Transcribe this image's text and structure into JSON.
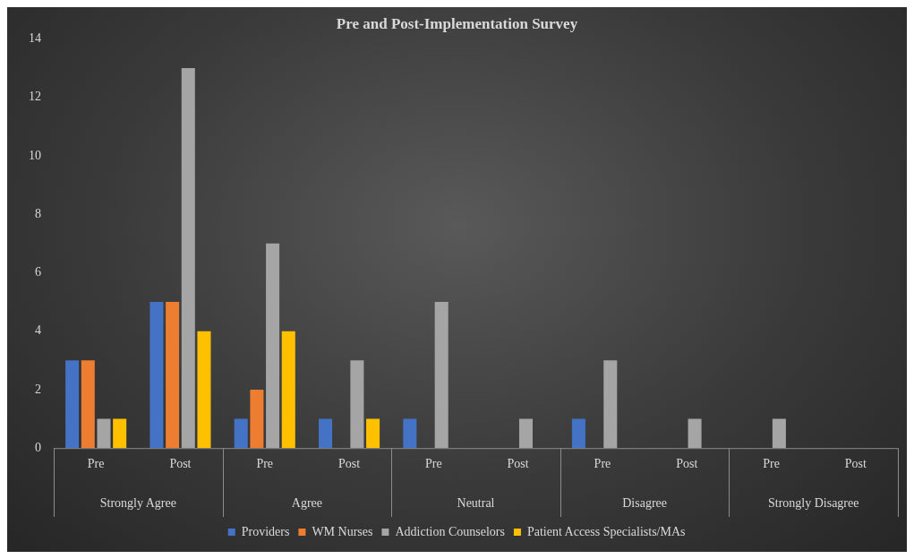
{
  "chart_data": {
    "type": "bar",
    "title": "Pre and Post-Implementation Survey",
    "categories": [
      "Pre",
      "Post",
      "Pre",
      "Post",
      "Pre",
      "Post",
      "Pre",
      "Post",
      "Pre",
      "Post"
    ],
    "annotations": [
      "Strongly Agree",
      "Agree",
      "Neutral",
      "Disagree",
      "Strongly Disagree"
    ],
    "series": [
      {
        "name": "Providers",
        "color": "#4472c4",
        "values": [
          3,
          5,
          1,
          1,
          1,
          null,
          1,
          null,
          null,
          null
        ]
      },
      {
        "name": "WM Nurses",
        "color": "#ed7d31",
        "values": [
          3,
          5,
          2,
          null,
          null,
          null,
          null,
          null,
          null,
          null
        ]
      },
      {
        "name": "Addiction Counselors",
        "color": "#a5a5a5",
        "values": [
          1,
          13,
          7,
          3,
          5,
          1,
          3,
          1,
          1,
          null
        ]
      },
      {
        "name": "Patient Access Specialists/MAs",
        "color": "#ffc000",
        "values": [
          1,
          4,
          4,
          1,
          null,
          null,
          null,
          null,
          null,
          null
        ]
      }
    ],
    "ylim": [
      0,
      14
    ],
    "yticks": [
      0,
      2,
      4,
      6,
      8,
      10,
      12,
      14
    ],
    "grid": false,
    "legend": "bottom"
  }
}
